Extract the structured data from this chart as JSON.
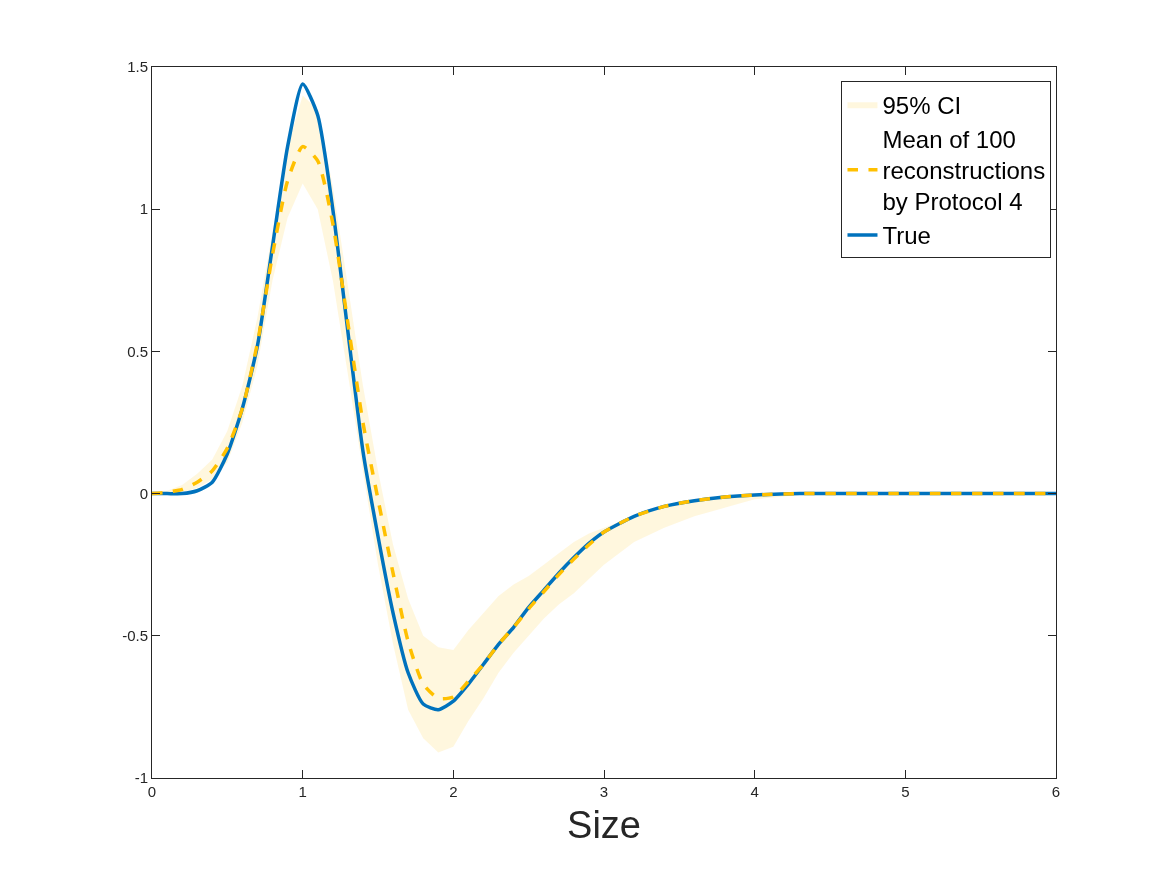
{
  "chart_data": {
    "type": "line",
    "xlabel": "Size",
    "x": [
      0,
      0.1,
      0.2,
      0.3,
      0.4,
      0.5,
      0.6,
      0.7,
      0.8,
      0.9,
      1.0,
      1.1,
      1.2,
      1.3,
      1.4,
      1.5,
      1.6,
      1.7,
      1.8,
      1.9,
      2.0,
      2.1,
      2.2,
      2.3,
      2.4,
      2.5,
      2.6,
      2.7,
      2.8,
      2.9,
      3.0,
      3.2,
      3.4,
      3.6,
      3.8,
      4.0,
      4.3,
      4.6,
      5,
      6
    ],
    "series": [
      {
        "type": "area",
        "name": "95% CI",
        "color": "#ffc000",
        "values": [
          null,
          null,
          null,
          null,
          null,
          null,
          null,
          null,
          null,
          null,
          null,
          null,
          null,
          null,
          null,
          null,
          null,
          null,
          null,
          null,
          null,
          null,
          null,
          null,
          null,
          null,
          null,
          null,
          null,
          null,
          null,
          null,
          null,
          null,
          null,
          null,
          null,
          null,
          null,
          null
        ],
        "lower": [
          -0.005,
          0,
          0.005,
          0.02,
          0.05,
          0.11,
          0.25,
          0.45,
          0.75,
          0.97,
          1.09,
          1.0,
          0.75,
          0.42,
          0.08,
          -0.25,
          -0.53,
          -0.76,
          -0.86,
          -0.91,
          -0.89,
          -0.8,
          -0.72,
          -0.63,
          -0.56,
          -0.5,
          -0.44,
          -0.39,
          -0.35,
          -0.3,
          -0.25,
          -0.17,
          -0.12,
          -0.08,
          -0.05,
          -0.02,
          -0.005,
          0,
          0,
          0
        ],
        "upper": [
          0.005,
          0.01,
          0.03,
          0.07,
          0.12,
          0.22,
          0.38,
          0.62,
          0.92,
          1.22,
          1.4,
          1.35,
          1.08,
          0.73,
          0.38,
          0.08,
          -0.18,
          -0.37,
          -0.5,
          -0.54,
          -0.55,
          -0.48,
          -0.42,
          -0.36,
          -0.32,
          -0.29,
          -0.25,
          -0.21,
          -0.17,
          -0.14,
          -0.12,
          -0.08,
          -0.04,
          -0.02,
          -0.008,
          0,
          0,
          0,
          0,
          0
        ]
      },
      {
        "name": "True",
        "color": "#0072bd",
        "line_style": "solid",
        "values": [
          0,
          0,
          0,
          0.01,
          0.04,
          0.14,
          0.3,
          0.52,
          0.87,
          1.22,
          1.44,
          1.33,
          1.0,
          0.57,
          0.15,
          -0.15,
          -0.42,
          -0.63,
          -0.74,
          -0.76,
          -0.73,
          -0.67,
          -0.6,
          -0.53,
          -0.47,
          -0.4,
          -0.34,
          -0.28,
          -0.225,
          -0.175,
          -0.135,
          -0.08,
          -0.045,
          -0.025,
          -0.012,
          -0.005,
          0,
          0,
          0,
          0
        ]
      },
      {
        "name": "Mean of 100 reconstructions by Protocol 4",
        "color": "#ffc000",
        "line_style": "dashed",
        "values": [
          0,
          0.005,
          0.015,
          0.04,
          0.08,
          0.16,
          0.3,
          0.53,
          0.84,
          1.1,
          1.22,
          1.17,
          0.95,
          0.6,
          0.25,
          -0.02,
          -0.28,
          -0.52,
          -0.67,
          -0.72,
          -0.715,
          -0.66,
          -0.6,
          -0.53,
          -0.47,
          -0.405,
          -0.345,
          -0.285,
          -0.23,
          -0.18,
          -0.135,
          -0.08,
          -0.045,
          -0.025,
          -0.012,
          -0.005,
          0,
          0,
          0,
          0
        ]
      }
    ],
    "xlim": [
      0,
      6
    ],
    "xticks": [
      0,
      1,
      2,
      3,
      4,
      5,
      6
    ],
    "ylim": [
      -1,
      1.5
    ],
    "yticks": [
      -1,
      -0.5,
      0,
      0.5,
      1,
      1.5
    ],
    "legend": "top right"
  }
}
